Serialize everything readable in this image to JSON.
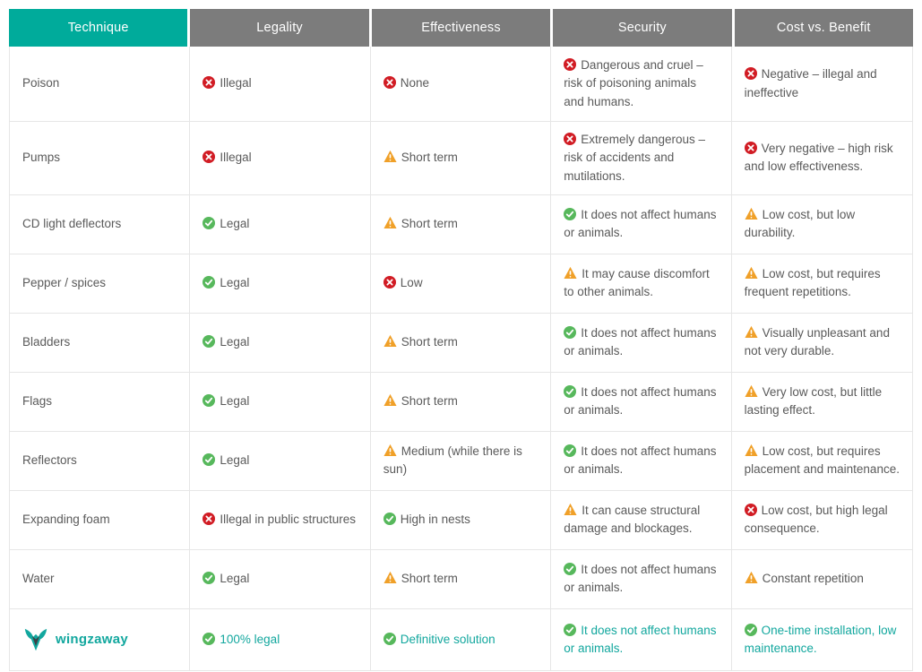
{
  "colors": {
    "header_accent": "#00ab9b",
    "header_gray": "#7c7c7c",
    "body_text": "#5a5a5a",
    "brand_teal": "#12a79e",
    "status_error": "#d11c24",
    "status_ok": "#57b85c",
    "status_warn": "#f0a028",
    "border": "#e6e6e6"
  },
  "table": {
    "columns": [
      "Technique",
      "Legality",
      "Effectiveness",
      "Security",
      "Cost vs. Benefit"
    ],
    "icon_legend": {
      "error": "x-circle-icon",
      "ok": "check-circle-icon",
      "warn": "warning-triangle-icon"
    },
    "brand": {
      "name": "wingzaway",
      "logo_icon": "wingzaway-wings-logo"
    },
    "rows": [
      {
        "technique": "Poison",
        "cells": [
          {
            "icon": "error",
            "text": "Illegal"
          },
          {
            "icon": "error",
            "text": "None"
          },
          {
            "icon": "error",
            "text": "Dangerous and cruel – risk of poisoning animals and humans."
          },
          {
            "icon": "error",
            "text": "Negative – illegal and ineffective"
          }
        ]
      },
      {
        "technique": "Pumps",
        "cells": [
          {
            "icon": "error",
            "text": "Illegal"
          },
          {
            "icon": "warn",
            "text": "Short term"
          },
          {
            "icon": "error",
            "text": "Extremely dangerous – risk of accidents and mutilations."
          },
          {
            "icon": "error",
            "text": "Very negative – high risk and low effectiveness."
          }
        ]
      },
      {
        "technique": "CD light deflectors",
        "cells": [
          {
            "icon": "ok",
            "text": "Legal"
          },
          {
            "icon": "warn",
            "text": "Short term"
          },
          {
            "icon": "ok",
            "text": "It does not affect humans or animals."
          },
          {
            "icon": "warn",
            "text": "Low cost, but low durability."
          }
        ]
      },
      {
        "technique": "Pepper / spices",
        "cells": [
          {
            "icon": "ok",
            "text": "Legal"
          },
          {
            "icon": "error",
            "text": "Low"
          },
          {
            "icon": "warn",
            "text": "It may cause discomfort to other animals."
          },
          {
            "icon": "warn",
            "text": "Low cost, but requires frequent repetitions."
          }
        ]
      },
      {
        "technique": "Bladders",
        "cells": [
          {
            "icon": "ok",
            "text": "Legal"
          },
          {
            "icon": "warn",
            "text": "Short term"
          },
          {
            "icon": "ok",
            "text": "It does not affect humans or animals."
          },
          {
            "icon": "warn",
            "text": "Visually unpleasant and not very durable."
          }
        ]
      },
      {
        "technique": "Flags",
        "cells": [
          {
            "icon": "ok",
            "text": "Legal"
          },
          {
            "icon": "warn",
            "text": "Short term"
          },
          {
            "icon": "ok",
            "text": "It does not affect humans or animals."
          },
          {
            "icon": "warn",
            "text": "Very low cost, but little lasting effect."
          }
        ]
      },
      {
        "technique": "Reflectors",
        "cells": [
          {
            "icon": "ok",
            "text": "Legal"
          },
          {
            "icon": "warn",
            "text": "Medium (while there is sun)"
          },
          {
            "icon": "ok",
            "text": "It does not affect humans or animals."
          },
          {
            "icon": "warn",
            "text": "Low cost, but requires placement and maintenance."
          }
        ]
      },
      {
        "technique": "Expanding foam",
        "cells": [
          {
            "icon": "error",
            "text": "Illegal in public structures"
          },
          {
            "icon": "ok",
            "text": "High in nests"
          },
          {
            "icon": "warn",
            "text": "It can cause structural damage and blockages."
          },
          {
            "icon": "error",
            "text": "Low cost, but high legal consequence."
          }
        ]
      },
      {
        "technique": "Water",
        "cells": [
          {
            "icon": "ok",
            "text": "Legal"
          },
          {
            "icon": "warn",
            "text": "Short term"
          },
          {
            "icon": "ok",
            "text": "It does not affect humans or animals."
          },
          {
            "icon": "warn",
            "text": "Constant repetition"
          }
        ]
      },
      {
        "technique": "wingzaway",
        "brand": true,
        "cells": [
          {
            "icon": "ok",
            "text": "100% legal"
          },
          {
            "icon": "ok",
            "text": "Definitive solution"
          },
          {
            "icon": "ok",
            "text": "It does not affect humans or animals."
          },
          {
            "icon": "ok",
            "text": "One-time installation, low maintenance."
          }
        ]
      }
    ]
  }
}
